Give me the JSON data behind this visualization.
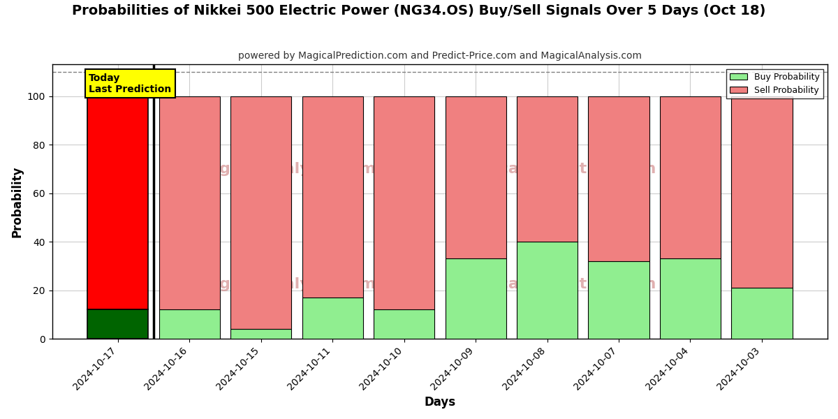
{
  "title": "Probabilities of Nikkei 500 Electric Power (NG34.OS) Buy/Sell Signals Over 5 Days (Oct 18)",
  "subtitle": "powered by MagicalPrediction.com and Predict-Price.com and MagicalAnalysis.com",
  "xlabel": "Days",
  "ylabel": "Probability",
  "categories": [
    "2024-10-17",
    "2024-10-16",
    "2024-10-15",
    "2024-10-11",
    "2024-10-10",
    "2024-10-09",
    "2024-10-08",
    "2024-10-07",
    "2024-10-04",
    "2024-10-03"
  ],
  "buy_values": [
    12,
    12,
    4,
    17,
    12,
    33,
    40,
    32,
    33,
    21
  ],
  "sell_values": [
    88,
    88,
    96,
    83,
    88,
    67,
    60,
    68,
    67,
    79
  ],
  "today_buy_color": "#006400",
  "today_sell_color": "#ff0000",
  "pred_buy_color": "#90ee90",
  "pred_sell_color": "#f08080",
  "today_bar_edge_color": "#000000",
  "pred_bar_edge_color": "#000000",
  "ylim": [
    0,
    113
  ],
  "yticks": [
    0,
    20,
    40,
    60,
    80,
    100
  ],
  "dashed_line_y": 110,
  "today_label": "Today\nLast Prediction",
  "today_label_bg": "#ffff00",
  "today_label_fontsize": 10,
  "legend_buy_label": "Buy Probability",
  "legend_sell_label": "Sell Probability",
  "title_fontsize": 14,
  "subtitle_fontsize": 10,
  "axis_label_fontsize": 12,
  "tick_fontsize": 10,
  "figsize": [
    12,
    6
  ],
  "dpi": 100,
  "bg_color": "#ffffff",
  "grid_color": "#cccccc",
  "bar_width": 0.85
}
